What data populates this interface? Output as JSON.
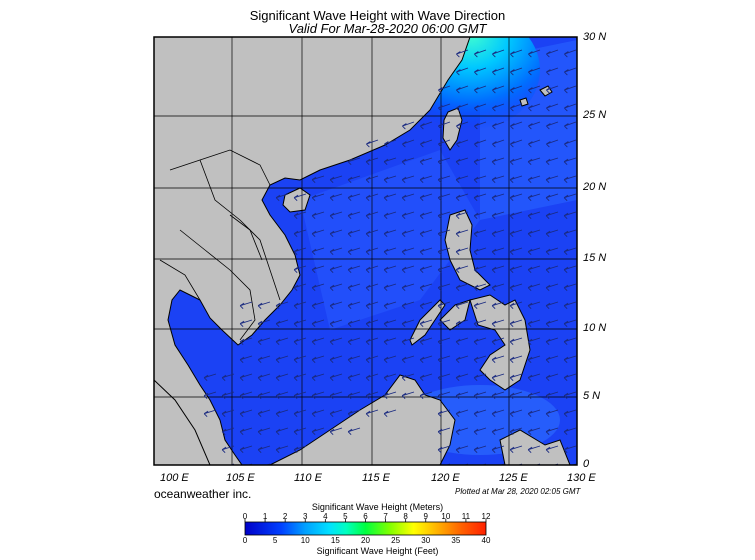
{
  "map": {
    "title": "Significant Wave Height with Wave Direction",
    "subtitle": "Valid For Mar-28-2020 06:00 GMT",
    "lon_ticks": [
      "100 E",
      "105 E",
      "110 E",
      "115 E",
      "120 E",
      "125 E",
      "130 E"
    ],
    "lat_ticks": [
      "30 N",
      "25 N",
      "20 N",
      "15 N",
      "10 N",
      "5 N",
      "0"
    ],
    "lon_range": [
      99,
      130
    ],
    "lat_range": [
      0,
      30
    ],
    "brand": "oceanweather inc.",
    "plotted": "Plotted at Mar 28, 2020 02:05 GMT",
    "land_color": "#c0c0c0",
    "sea_color": "#1a3cf0",
    "arrow_color": "#1a2a80"
  },
  "colorbar": {
    "title_meters": "Significant Wave Height (Meters)",
    "title_feet": "Significant Wave Height (Feet)",
    "meter_ticks": [
      "0",
      "1",
      "2",
      "3",
      "4",
      "5",
      "6",
      "7",
      "8",
      "9",
      "10",
      "11",
      "12"
    ],
    "feet_ticks": [
      "0",
      "5",
      "10",
      "15",
      "20",
      "25",
      "30",
      "35",
      "40"
    ],
    "colors": [
      "#0000c8",
      "#0030ff",
      "#0080ff",
      "#00c8ff",
      "#00ffe0",
      "#00ff80",
      "#30ff00",
      "#a0ff00",
      "#ffff00",
      "#ffc000",
      "#ff8000",
      "#ff3000"
    ]
  }
}
